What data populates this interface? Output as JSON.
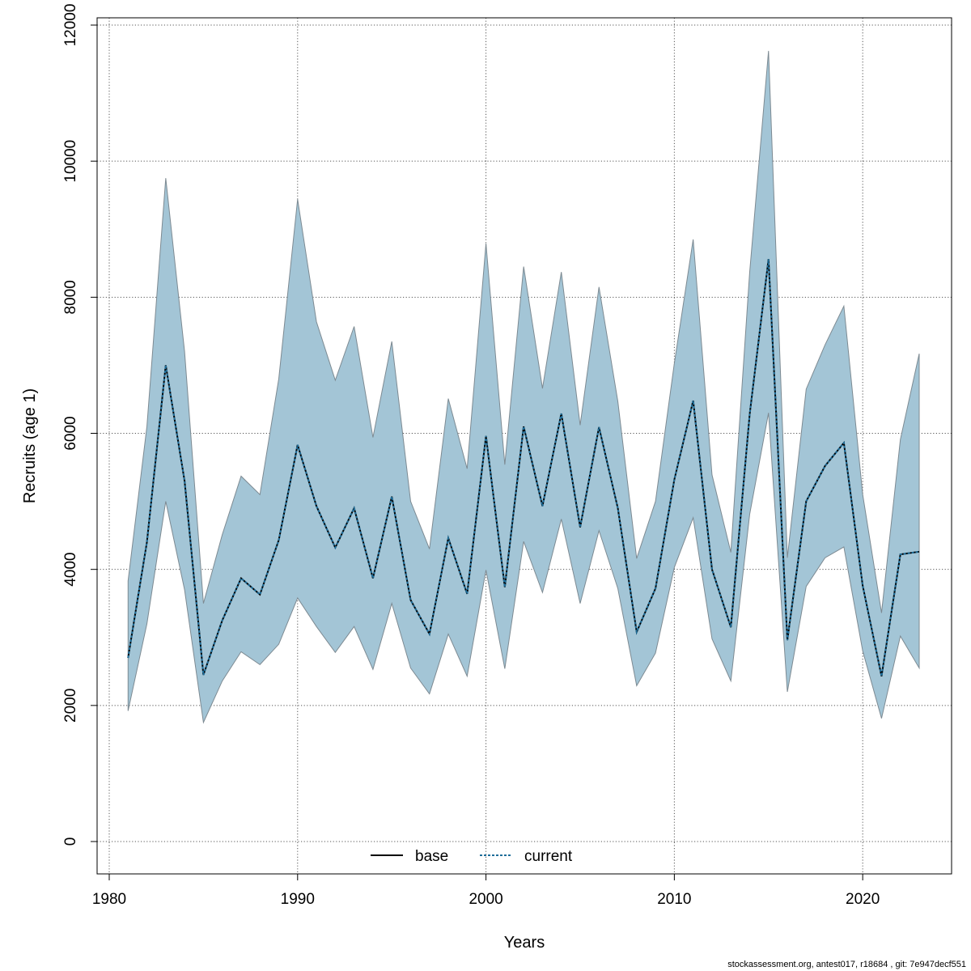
{
  "chart_data": {
    "type": "line",
    "title": "",
    "xlabel": "Years",
    "ylabel": "Recruits (age 1)",
    "xlim": [
      1980,
      2023
    ],
    "ylim": [
      0,
      12000
    ],
    "x_ticks": [
      1980,
      1990,
      2000,
      2010,
      2020
    ],
    "y_ticks": [
      0,
      2000,
      4000,
      6000,
      8000,
      10000,
      12000
    ],
    "grid": true,
    "legend_position": "bottom-center",
    "x": [
      1981,
      1982,
      1983,
      1984,
      1985,
      1986,
      1987,
      1988,
      1989,
      1990,
      1991,
      1992,
      1993,
      1994,
      1995,
      1996,
      1997,
      1998,
      1999,
      2000,
      2001,
      2002,
      2003,
      2004,
      2005,
      2006,
      2007,
      2008,
      2009,
      2010,
      2011,
      2012,
      2013,
      2014,
      2015,
      2016,
      2017,
      2018,
      2019,
      2020,
      2021,
      2022,
      2023
    ],
    "series": [
      {
        "name": "base",
        "style": "solid",
        "color": "#000000",
        "values": [
          2700,
          4400,
          7000,
          5300,
          2450,
          3250,
          3870,
          3630,
          4430,
          5830,
          4930,
          4320,
          4900,
          3870,
          5070,
          3550,
          3050,
          4460,
          3640,
          5960,
          3740,
          6100,
          4930,
          6290,
          4620,
          6090,
          4900,
          3080,
          3720,
          5320,
          6480,
          4000,
          3150,
          6280,
          8560,
          2960,
          5000,
          5520,
          5860,
          3760,
          2430,
          4220,
          4260
        ]
      },
      {
        "name": "current",
        "style": "dashed",
        "color": "#1f6e9a",
        "values": [
          2700,
          4400,
          7000,
          5300,
          2450,
          3250,
          3870,
          3630,
          4430,
          5830,
          4930,
          4320,
          4900,
          3870,
          5070,
          3550,
          3050,
          4460,
          3640,
          5960,
          3740,
          6100,
          4930,
          6290,
          4620,
          6090,
          4900,
          3080,
          3720,
          5320,
          6480,
          4000,
          3150,
          6280,
          8560,
          2960,
          5000,
          5520,
          5860,
          3760,
          2430,
          4220,
          4260
        ]
      }
    ],
    "confidence_band": {
      "color": "#a3c5d6",
      "lower": [
        1920,
        3200,
        5000,
        3700,
        1750,
        2360,
        2790,
        2600,
        2900,
        3580,
        3160,
        2780,
        3160,
        2530,
        3500,
        2550,
        2170,
        3050,
        2430,
        3990,
        2540,
        4410,
        3660,
        4740,
        3500,
        4570,
        3720,
        2290,
        2770,
        4030,
        4760,
        2980,
        2360,
        4810,
        6300,
        2200,
        3750,
        4170,
        4330,
        2800,
        1810,
        3020,
        2550
      ],
      "upper": [
        3830,
        6100,
        9750,
        7200,
        3500,
        4510,
        5370,
        5100,
        6800,
        9440,
        7640,
        6780,
        7570,
        5940,
        7350,
        5000,
        4300,
        6510,
        5480,
        8790,
        5540,
        8450,
        6660,
        8370,
        6120,
        8150,
        6470,
        4160,
        5000,
        7030,
        8850,
        5390,
        4250,
        8370,
        11620,
        4170,
        6650,
        7300,
        7870,
        5100,
        3360,
        5910,
        7170
      ]
    }
  },
  "footer": "stockassessment.org, antest017, r18684 , git: 7e947decf551"
}
